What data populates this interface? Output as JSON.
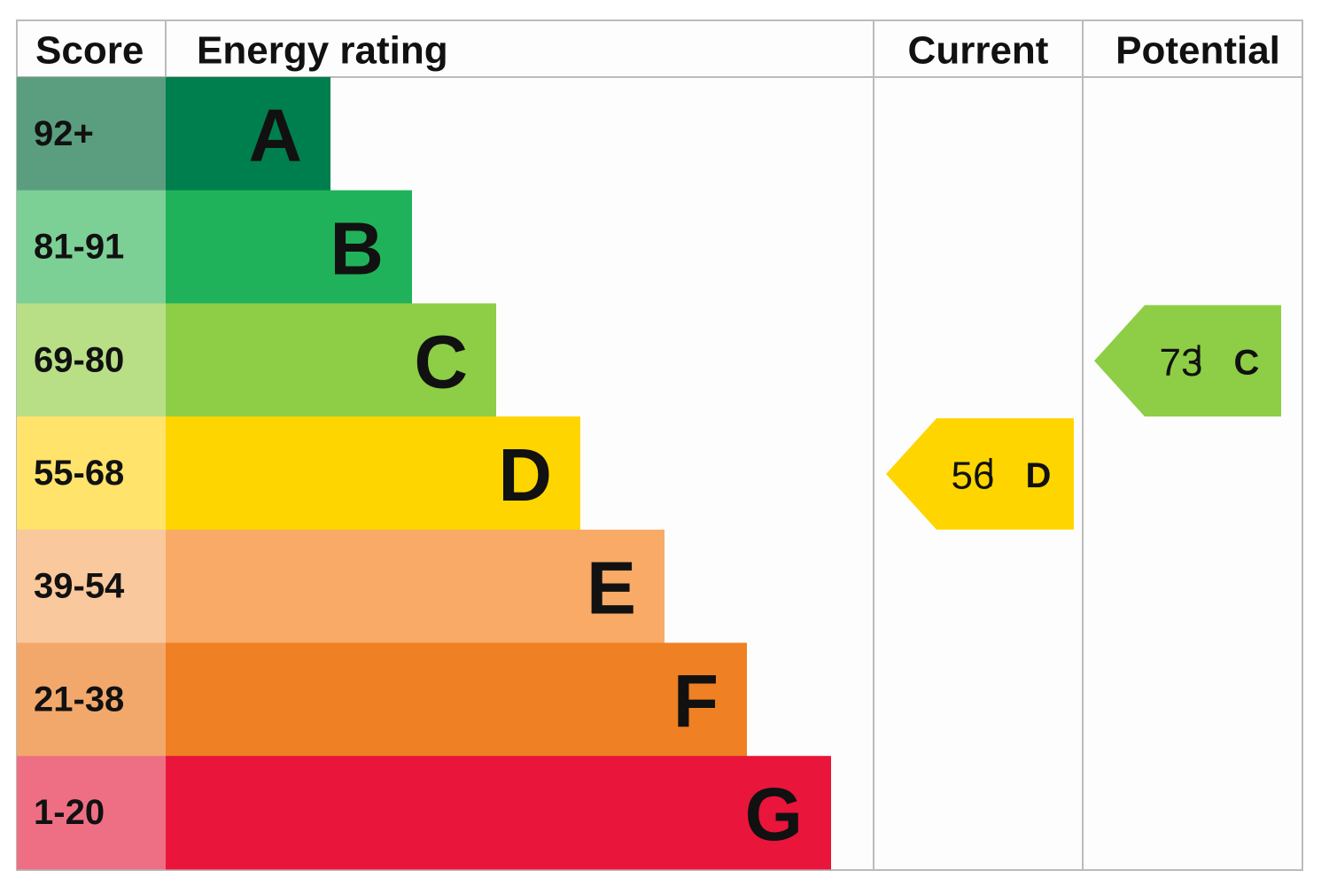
{
  "header": {
    "score": "Score",
    "rating": "Energy rating",
    "current": "Current",
    "potential": "Potential"
  },
  "bands": [
    {
      "score": "92+",
      "letter": "A"
    },
    {
      "score": "81-91",
      "letter": "B"
    },
    {
      "score": "69-80",
      "letter": "C"
    },
    {
      "score": "55-68",
      "letter": "D"
    },
    {
      "score": "39-54",
      "letter": "E"
    },
    {
      "score": "21-38",
      "letter": "F"
    },
    {
      "score": "1-20",
      "letter": "G"
    }
  ],
  "current": {
    "value": 56,
    "letter": "D"
  },
  "potential": {
    "value": 73,
    "letter": "C"
  }
}
